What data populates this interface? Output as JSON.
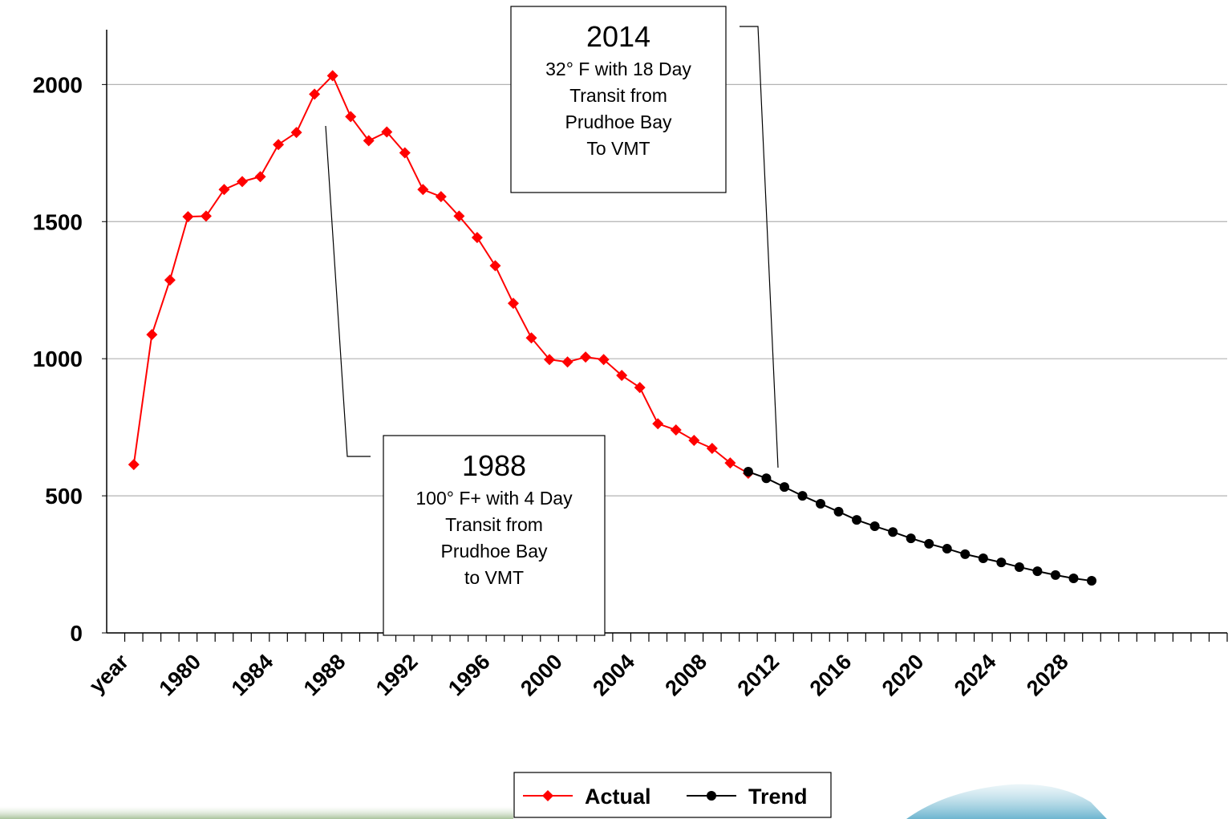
{
  "chart_data": {
    "type": "line",
    "categories": [
      "year",
      null,
      null,
      null,
      "1980",
      null,
      null,
      null,
      "1984",
      null,
      null,
      null,
      "1988",
      null,
      null,
      null,
      "1992",
      null,
      null,
      null,
      "1996",
      null,
      null,
      null,
      "2000",
      null,
      null,
      null,
      "2004",
      null,
      null,
      null,
      "2008",
      null,
      null,
      null,
      "2012",
      null,
      null,
      null,
      "2016",
      null,
      null,
      null,
      "2020",
      null,
      null,
      null,
      "2024",
      null,
      null,
      null,
      "2028",
      null,
      null,
      null,
      null,
      null,
      null,
      null,
      null,
      null
    ],
    "series": [
      {
        "name": "Actual",
        "color": "#ff0000",
        "marker": "diamond",
        "values": [
          null,
          614,
          1088,
          1287,
          1518,
          1520,
          1617,
          1646,
          1664,
          1781,
          1825,
          1965,
          2032,
          1883,
          1795,
          1827,
          1751,
          1617,
          1591,
          1520,
          1442,
          1339,
          1202,
          1076,
          997,
          988,
          1006,
          997,
          939,
          895,
          763,
          740,
          702,
          673,
          620,
          582,
          null,
          null,
          null,
          null,
          null,
          null,
          null,
          null,
          null,
          null,
          null,
          null,
          null,
          null,
          null,
          null,
          null,
          null,
          null,
          null,
          null,
          null,
          null,
          null,
          null,
          null
        ]
      },
      {
        "name": "Trend",
        "color": "#000000",
        "marker": "circle",
        "values": [
          null,
          null,
          null,
          null,
          null,
          null,
          null,
          null,
          null,
          null,
          null,
          null,
          null,
          null,
          null,
          null,
          null,
          null,
          null,
          null,
          null,
          null,
          null,
          null,
          null,
          null,
          null,
          null,
          null,
          null,
          null,
          null,
          null,
          null,
          null,
          588,
          564,
          532,
          500,
          471,
          442,
          412,
          389,
          368,
          345,
          325,
          307,
          287,
          272,
          257,
          240,
          225,
          211,
          199,
          190,
          null,
          null,
          null,
          null,
          null,
          null,
          null
        ]
      }
    ],
    "ylim": [
      0,
      2200
    ],
    "yticks": [
      0,
      500,
      1000,
      1500,
      2000
    ],
    "grid": true,
    "legend": "bottom",
    "annotations": [
      {
        "title": "2014",
        "lines": [
          "32° F with 18 Day",
          "Transit from",
          "Prudhoe Bay",
          "To VMT"
        ]
      },
      {
        "title": "1988",
        "lines": [
          "100° F+ with 4 Day",
          "Transit from",
          "Prudhoe Bay",
          "to VMT"
        ]
      }
    ]
  }
}
